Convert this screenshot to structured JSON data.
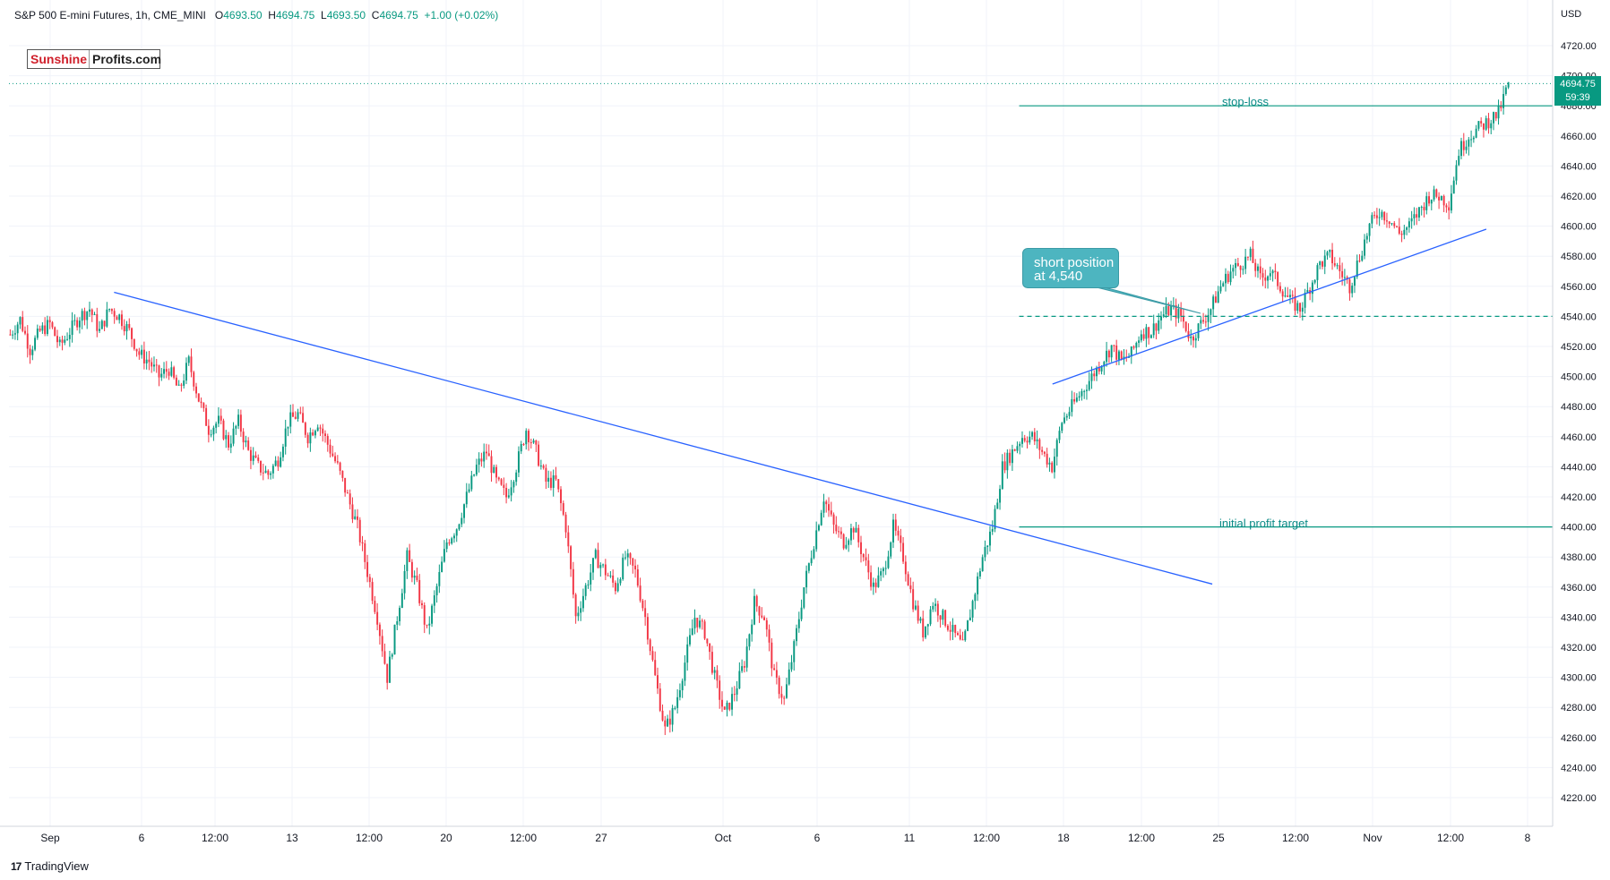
{
  "header": {
    "symbol": "S&P 500 E-mini Futures, 1h, CME_MINI",
    "open_label": "O",
    "open": "4693.50",
    "high_label": "H",
    "high": "4694.75",
    "low_label": "L",
    "low": "4693.50",
    "close_label": "C",
    "close": "4694.75",
    "change": "+1.00 (+0.02%)"
  },
  "logo": {
    "part1": "Sunshine",
    "part2": "Profits.com"
  },
  "footer": {
    "brand_mark": "17",
    "brand": "TradingView"
  },
  "currency_label": "USD",
  "price_tag": {
    "price": "4694.75",
    "countdown": "59:39"
  },
  "callout": {
    "line1": "short position",
    "line2": "at 4,540"
  },
  "annotations": {
    "stop_loss": "stop-loss",
    "profit_target": "initial profit target"
  },
  "chart_data": {
    "type": "candlestick",
    "title": "",
    "xlabel": "",
    "ylabel": "",
    "ylim": [
      4200,
      4750
    ],
    "y_ticks": [
      4220,
      4240,
      4260,
      4280,
      4300,
      4320,
      4340,
      4360,
      4380,
      4400,
      4420,
      4440,
      4460,
      4480,
      4500,
      4520,
      4540,
      4560,
      4580,
      4600,
      4620,
      4640,
      4660,
      4680,
      4700,
      4720
    ],
    "x_ticks": [
      "Sep",
      "6",
      "12:00",
      "13",
      "12:00",
      "20",
      "12:00",
      "27",
      "Oct",
      "6",
      "11",
      "12:00",
      "18",
      "12:00",
      "25",
      "12:00",
      "Nov",
      "12:00",
      "8"
    ],
    "approx_close_path": [
      [
        0,
        4528
      ],
      [
        4,
        4538
      ],
      [
        8,
        4518
      ],
      [
        12,
        4530
      ],
      [
        16,
        4535
      ],
      [
        20,
        4520
      ],
      [
        24,
        4530
      ],
      [
        28,
        4540
      ],
      [
        32,
        4545
      ],
      [
        36,
        4530
      ],
      [
        40,
        4545
      ],
      [
        44,
        4540
      ],
      [
        48,
        4530
      ],
      [
        52,
        4515
      ],
      [
        56,
        4510
      ],
      [
        60,
        4500
      ],
      [
        64,
        4505
      ],
      [
        68,
        4490
      ],
      [
        72,
        4510
      ],
      [
        76,
        4485
      ],
      [
        80,
        4465
      ],
      [
        84,
        4470
      ],
      [
        88,
        4455
      ],
      [
        92,
        4470
      ],
      [
        96,
        4450
      ],
      [
        100,
        4440
      ],
      [
        104,
        4435
      ],
      [
        108,
        4445
      ],
      [
        112,
        4470
      ],
      [
        116,
        4475
      ],
      [
        120,
        4460
      ],
      [
        124,
        4470
      ],
      [
        128,
        4455
      ],
      [
        132,
        4440
      ],
      [
        136,
        4420
      ],
      [
        140,
        4400
      ],
      [
        144,
        4370
      ],
      [
        148,
        4340
      ],
      [
        152,
        4300
      ],
      [
        156,
        4340
      ],
      [
        160,
        4380
      ],
      [
        164,
        4360
      ],
      [
        168,
        4330
      ],
      [
        172,
        4360
      ],
      [
        176,
        4390
      ],
      [
        180,
        4400
      ],
      [
        184,
        4420
      ],
      [
        188,
        4440
      ],
      [
        192,
        4450
      ],
      [
        196,
        4430
      ],
      [
        200,
        4420
      ],
      [
        204,
        4440
      ],
      [
        208,
        4465
      ],
      [
        212,
        4450
      ],
      [
        216,
        4430
      ],
      [
        220,
        4430
      ],
      [
        224,
        4400
      ],
      [
        228,
        4340
      ],
      [
        232,
        4360
      ],
      [
        236,
        4380
      ],
      [
        240,
        4370
      ],
      [
        244,
        4360
      ],
      [
        248,
        4380
      ],
      [
        252,
        4370
      ],
      [
        256,
        4340
      ],
      [
        260,
        4300
      ],
      [
        264,
        4265
      ],
      [
        268,
        4280
      ],
      [
        272,
        4310
      ],
      [
        276,
        4340
      ],
      [
        280,
        4330
      ],
      [
        284,
        4300
      ],
      [
        288,
        4275
      ],
      [
        292,
        4290
      ],
      [
        296,
        4310
      ],
      [
        300,
        4350
      ],
      [
        304,
        4340
      ],
      [
        308,
        4300
      ],
      [
        312,
        4285
      ],
      [
        316,
        4320
      ],
      [
        320,
        4360
      ],
      [
        324,
        4390
      ],
      [
        328,
        4420
      ],
      [
        332,
        4400
      ],
      [
        336,
        4390
      ],
      [
        340,
        4400
      ],
      [
        344,
        4380
      ],
      [
        348,
        4360
      ],
      [
        352,
        4370
      ],
      [
        356,
        4400
      ],
      [
        360,
        4380
      ],
      [
        364,
        4350
      ],
      [
        368,
        4330
      ],
      [
        372,
        4350
      ],
      [
        376,
        4340
      ],
      [
        380,
        4330
      ],
      [
        384,
        4320
      ],
      [
        388,
        4350
      ],
      [
        392,
        4380
      ],
      [
        396,
        4400
      ],
      [
        400,
        4440
      ],
      [
        404,
        4450
      ],
      [
        408,
        4460
      ],
      [
        412,
        4460
      ],
      [
        416,
        4450
      ],
      [
        420,
        4440
      ],
      [
        424,
        4470
      ],
      [
        428,
        4480
      ],
      [
        432,
        4490
      ],
      [
        436,
        4500
      ],
      [
        440,
        4510
      ],
      [
        444,
        4520
      ],
      [
        448,
        4510
      ],
      [
        452,
        4515
      ],
      [
        456,
        4530
      ],
      [
        460,
        4530
      ],
      [
        464,
        4540
      ],
      [
        468,
        4545
      ],
      [
        472,
        4540
      ],
      [
        476,
        4525
      ],
      [
        480,
        4535
      ],
      [
        484,
        4545
      ],
      [
        488,
        4560
      ],
      [
        492,
        4570
      ],
      [
        496,
        4575
      ],
      [
        500,
        4580
      ],
      [
        504,
        4565
      ],
      [
        508,
        4570
      ],
      [
        512,
        4560
      ],
      [
        516,
        4550
      ],
      [
        520,
        4545
      ],
      [
        524,
        4560
      ],
      [
        528,
        4575
      ],
      [
        532,
        4580
      ],
      [
        536,
        4570
      ],
      [
        540,
        4560
      ],
      [
        544,
        4580
      ],
      [
        548,
        4600
      ],
      [
        552,
        4610
      ],
      [
        556,
        4605
      ],
      [
        560,
        4595
      ],
      [
        564,
        4600
      ],
      [
        568,
        4610
      ],
      [
        572,
        4620
      ],
      [
        576,
        4620
      ],
      [
        580,
        4615
      ],
      [
        584,
        4650
      ],
      [
        588,
        4660
      ],
      [
        592,
        4665
      ],
      [
        596,
        4670
      ],
      [
        600,
        4675
      ],
      [
        604,
        4694.75
      ]
    ],
    "lines": [
      {
        "kind": "trendline",
        "from": [
          0.0681,
          4556
        ],
        "to": [
          0.7795,
          4362
        ]
      },
      {
        "kind": "trendline",
        "from": [
          0.676,
          4495
        ],
        "to": [
          0.957,
          4598
        ]
      },
      {
        "kind": "horizontal",
        "name": "stop-loss",
        "value": 4680,
        "from_x": 0.6544
      },
      {
        "kind": "horizontal",
        "name": "initial profit target",
        "value": 4400,
        "from_x": 0.6544
      },
      {
        "kind": "horizontal-dashed",
        "name": "short position",
        "value": 4540,
        "from_x": 0.6544
      }
    ],
    "last_price": 4694.75,
    "grid": true,
    "colors": {
      "up": "#089981",
      "down": "#f23645",
      "trend": "#2962ff",
      "levels": "#089981",
      "grid": "#f0f3fa"
    }
  }
}
